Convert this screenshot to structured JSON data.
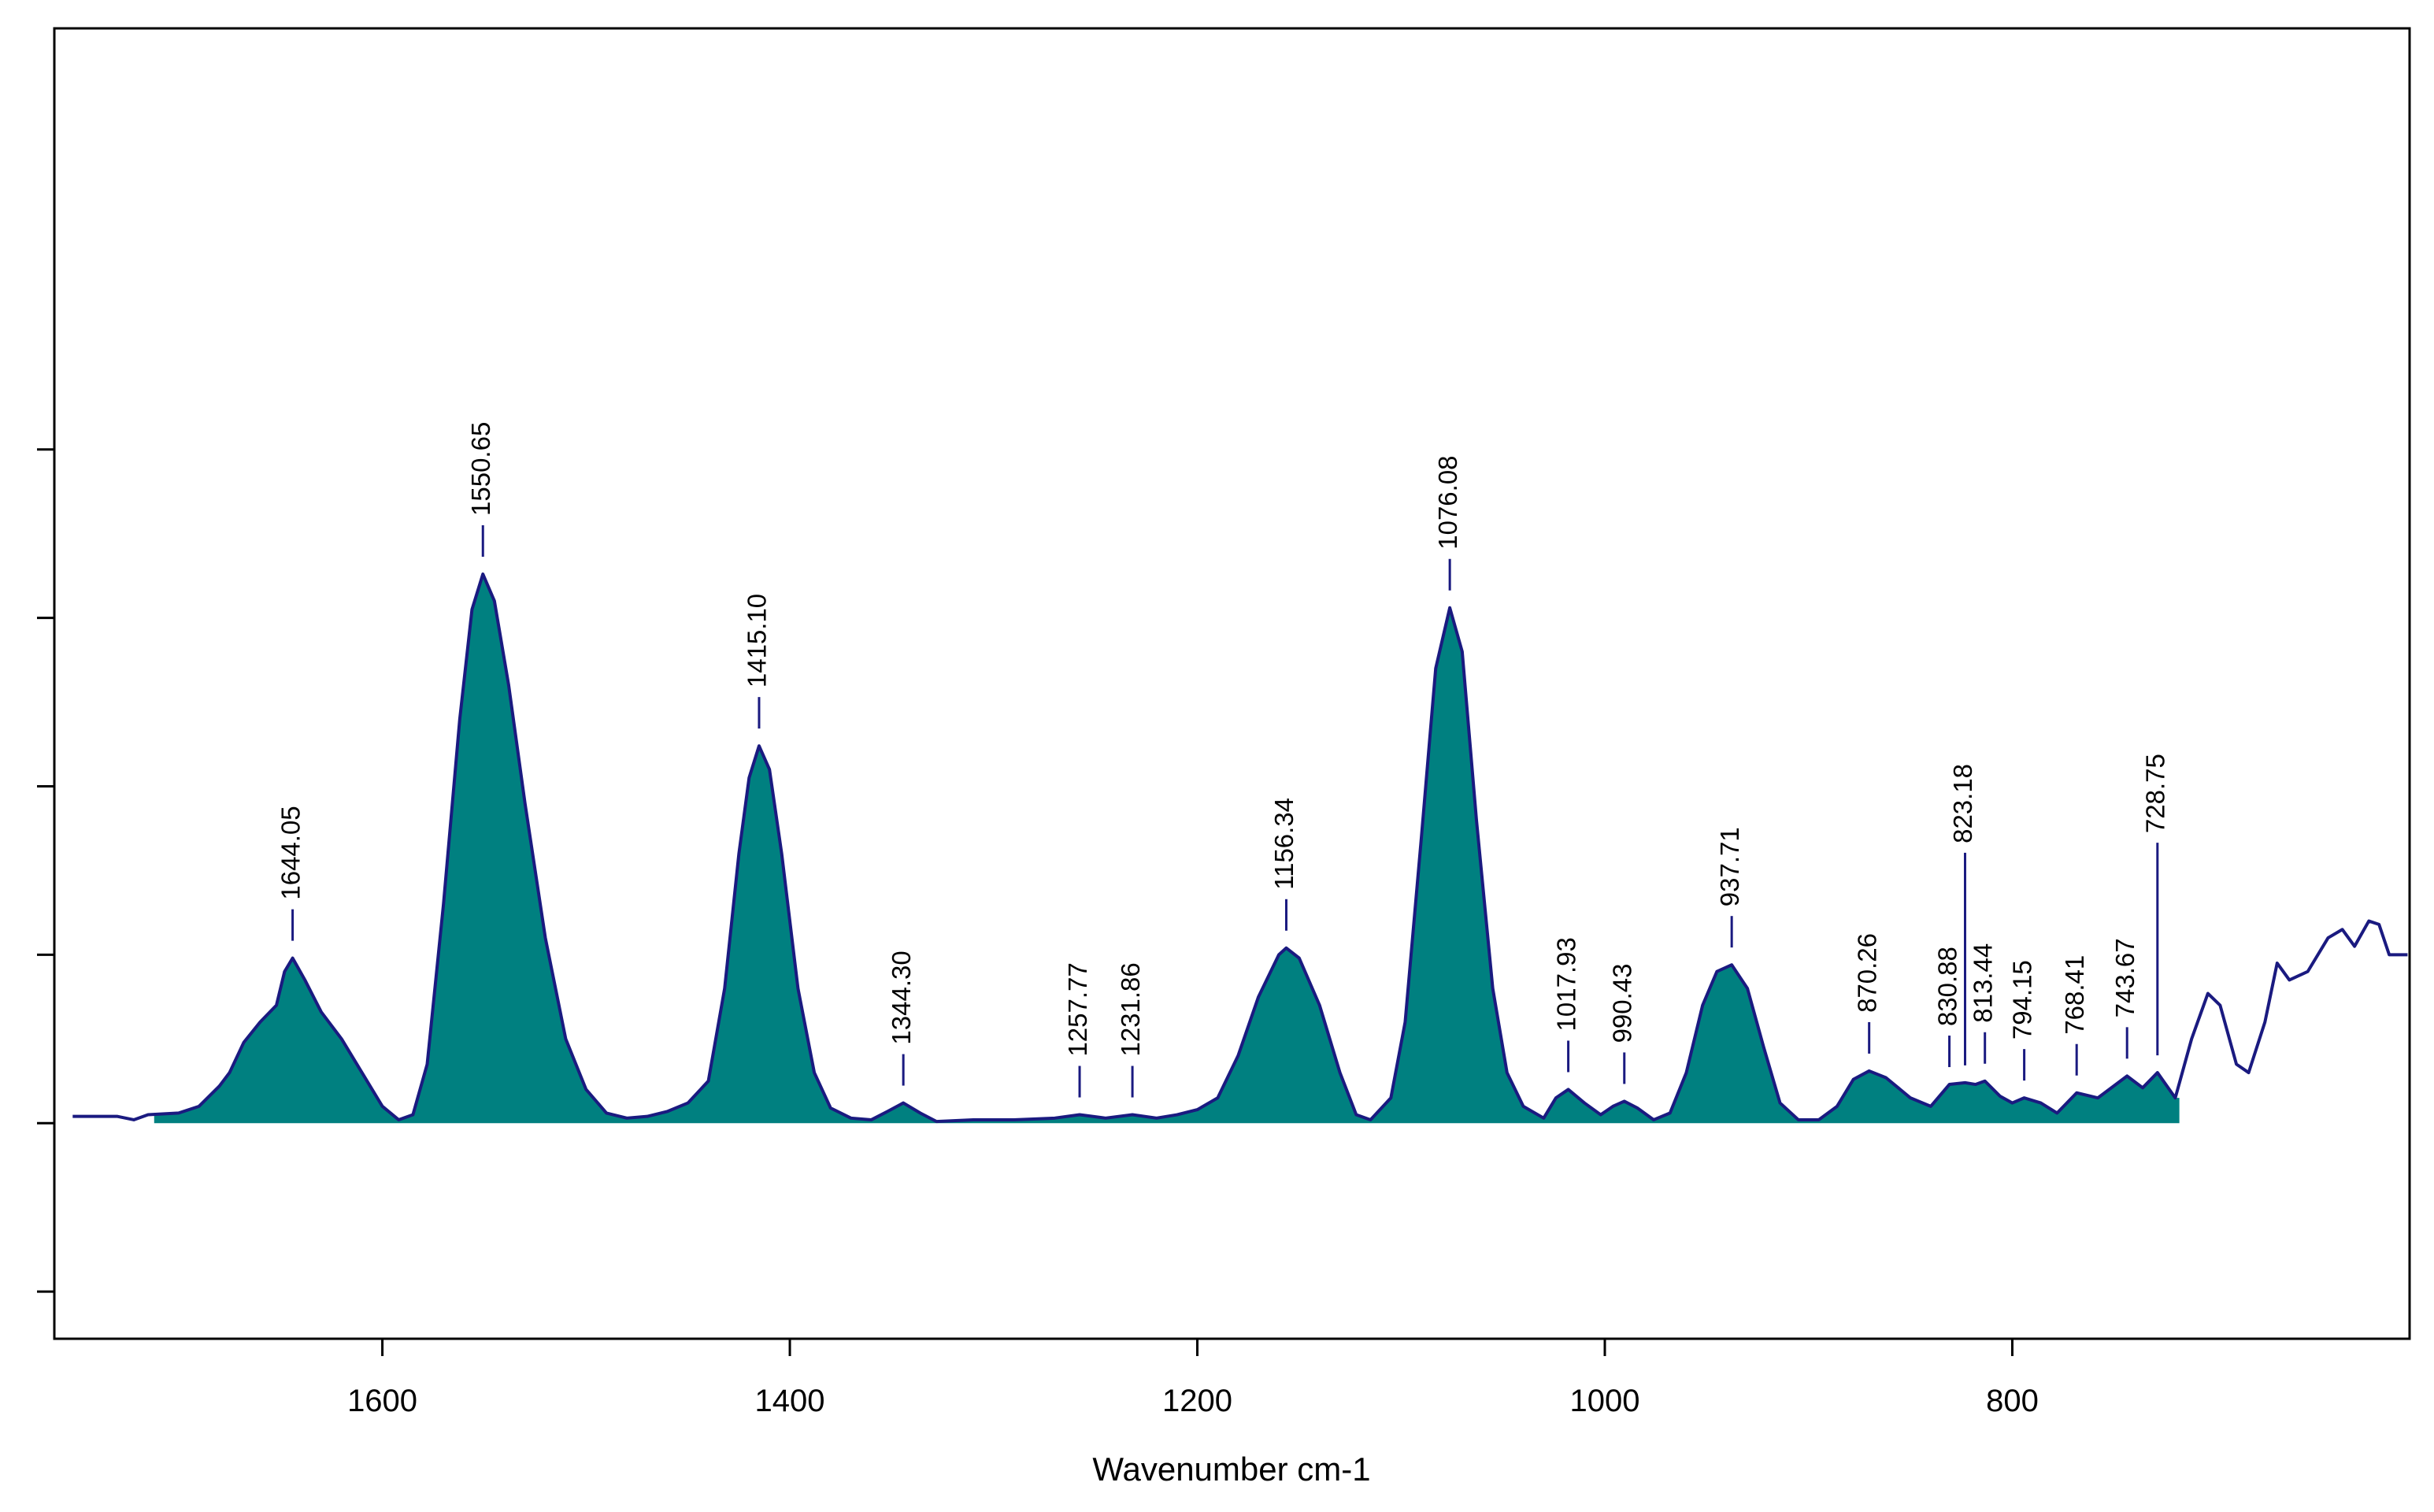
{
  "chart_data": {
    "type": "line",
    "xlabel": "Wavenumber cm-1",
    "xlim": [
      1761,
      605
    ],
    "ylim": [
      -1.28,
      6.5
    ],
    "xticks": [
      1600,
      1400,
      1200,
      1000,
      800
    ],
    "yticks": [
      -1,
      0,
      1,
      2,
      3,
      4
    ],
    "fill_xlim": [
      1712,
      718
    ],
    "fill_color": "#008080",
    "series": [
      {
        "color": "#1a1a80",
        "x": [
          1752,
          1730,
          1722,
          1715,
          1700,
          1690,
          1680,
          1675,
          1668,
          1660,
          1652,
          1648,
          1644.05,
          1638,
          1630,
          1620,
          1610,
          1600,
          1592,
          1585,
          1578,
          1570,
          1562,
          1556,
          1550.65,
          1545,
          1538,
          1530,
          1520,
          1510,
          1500,
          1490,
          1480,
          1470,
          1460,
          1450,
          1440,
          1432,
          1425,
          1420,
          1415.1,
          1410,
          1404,
          1396,
          1388,
          1380,
          1370,
          1360,
          1352,
          1344.3,
          1336,
          1328,
          1310,
          1290,
          1270,
          1257.77,
          1245,
          1231.86,
          1220,
          1210,
          1200,
          1190,
          1180,
          1170,
          1160,
          1156.34,
          1150,
          1140,
          1130,
          1122,
          1115,
          1105,
          1098,
          1090,
          1083,
          1076.08,
          1070,
          1063,
          1055,
          1048,
          1040,
          1030,
          1024,
          1017.93,
          1010,
          1002,
          996,
          990.43,
          984,
          976,
          968,
          960,
          952,
          945,
          937.71,
          930,
          922,
          914,
          905,
          895,
          886,
          878,
          870.26,
          862,
          850,
          840,
          830.88,
          823.18,
          818,
          813.44,
          806,
          800,
          794.15,
          786,
          778,
          768.41,
          758,
          743.67,
          736,
          728.75,
          720,
          712,
          704,
          698,
          690,
          684,
          676,
          670,
          664,
          655,
          645,
          638,
          632,
          625,
          620,
          615,
          606
        ],
        "values": [
          0.04,
          0.04,
          0.02,
          0.05,
          0.06,
          0.1,
          0.22,
          0.3,
          0.48,
          0.6,
          0.7,
          0.9,
          0.98,
          0.85,
          0.66,
          0.5,
          0.3,
          0.1,
          0.02,
          0.05,
          0.35,
          1.3,
          2.4,
          3.05,
          3.26,
          3.1,
          2.6,
          1.9,
          1.1,
          0.5,
          0.2,
          0.06,
          0.03,
          0.04,
          0.07,
          0.12,
          0.25,
          0.8,
          1.6,
          2.05,
          2.24,
          2.1,
          1.6,
          0.8,
          0.3,
          0.09,
          0.03,
          0.02,
          0.07,
          0.12,
          0.06,
          0.01,
          0.02,
          0.02,
          0.03,
          0.05,
          0.03,
          0.05,
          0.03,
          0.05,
          0.08,
          0.15,
          0.4,
          0.75,
          1.0,
          1.04,
          0.98,
          0.7,
          0.3,
          0.05,
          0.02,
          0.15,
          0.6,
          1.7,
          2.7,
          3.06,
          2.8,
          1.8,
          0.8,
          0.3,
          0.1,
          0.03,
          0.15,
          0.2,
          0.12,
          0.05,
          0.1,
          0.13,
          0.09,
          0.02,
          0.06,
          0.3,
          0.7,
          0.9,
          0.94,
          0.8,
          0.45,
          0.12,
          0.02,
          0.02,
          0.1,
          0.26,
          0.31,
          0.27,
          0.15,
          0.1,
          0.23,
          0.24,
          0.23,
          0.25,
          0.16,
          0.12,
          0.15,
          0.12,
          0.06,
          0.18,
          0.15,
          0.28,
          0.21,
          0.3,
          0.15,
          0.5,
          0.77,
          0.7,
          0.35,
          0.3,
          0.6,
          0.95,
          0.85,
          0.9,
          1.1,
          1.15,
          1.05,
          1.2,
          1.18,
          1.0,
          1.0
        ]
      }
    ],
    "peaks": [
      1644.05,
      1550.65,
      {
        "value": 1415.1,
        "label": "1415.10"
      },
      {
        "value": 1344.3,
        "label": "1344.30"
      },
      1257.77,
      1231.86,
      1156.34,
      1076.08,
      1017.93,
      990.43,
      937.71,
      870.26,
      830.88,
      823.18,
      813.44,
      794.15,
      768.41,
      743.67,
      728.75
    ]
  }
}
